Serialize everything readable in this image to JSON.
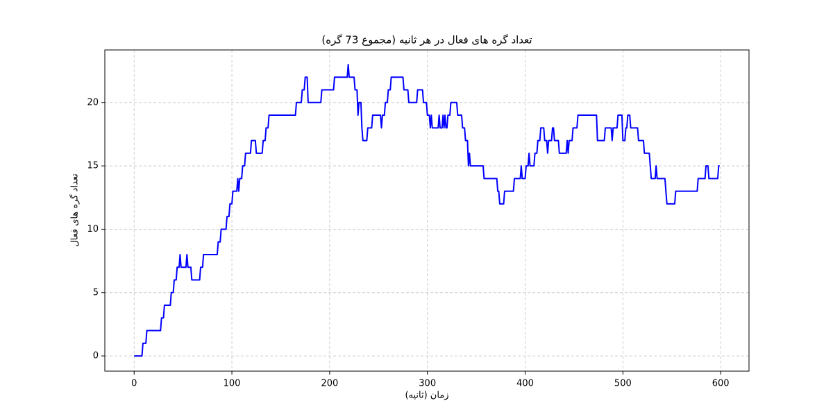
{
  "chart_data": {
    "type": "line",
    "title": "تعداد گره های فعال در هر ثانیه (مجموع 73 گره)",
    "x_label": "زمان (ثانیه)",
    "y_label": "تعداد گره های فعال",
    "x": [
      0,
      8,
      9,
      12,
      13,
      27,
      28,
      30,
      31,
      37,
      38,
      40,
      41,
      43,
      44,
      46,
      47,
      48,
      53,
      54,
      55,
      58,
      59,
      67,
      68,
      70,
      71,
      85,
      86,
      88,
      89,
      94,
      95,
      97,
      98,
      100,
      101,
      105,
      106,
      107,
      108,
      110,
      111,
      113,
      114,
      119,
      120,
      124,
      125,
      131,
      132,
      134,
      135,
      137,
      138,
      165,
      166,
      171,
      172,
      174,
      175,
      177,
      178,
      191,
      192,
      204,
      205,
      218,
      219,
      220,
      225,
      226,
      228,
      229,
      230,
      232,
      233,
      234,
      238,
      239,
      243,
      244,
      252,
      253,
      254,
      256,
      257,
      259,
      260,
      262,
      263,
      275,
      276,
      280,
      281,
      289,
      290,
      295,
      296,
      299,
      300,
      302,
      303,
      304,
      305,
      311,
      312,
      313,
      315,
      316,
      317,
      318,
      319,
      320,
      321,
      323,
      324,
      330,
      331,
      335,
      336,
      338,
      339,
      341,
      342,
      343,
      344,
      357,
      358,
      371,
      372,
      373,
      374,
      378,
      379,
      388,
      389,
      395,
      396,
      397,
      400,
      401,
      403,
      404,
      405,
      409,
      410,
      412,
      413,
      415,
      416,
      419,
      420,
      422,
      423,
      424,
      427,
      428,
      429,
      430,
      434,
      435,
      442,
      443,
      444,
      445,
      448,
      449,
      453,
      454,
      473,
      474,
      481,
      482,
      488,
      489,
      490,
      494,
      495,
      499,
      500,
      502,
      503,
      504,
      505,
      507,
      508,
      515,
      516,
      521,
      522,
      527,
      528,
      529,
      533,
      534,
      535,
      543,
      544,
      545,
      553,
      554,
      576,
      577,
      584,
      585,
      587,
      588,
      597,
      598,
      599
    ],
    "series": [
      {
        "color": "#0000ff",
        "values": [
          0,
          0,
          1,
          1,
          2,
          2,
          3,
          3,
          4,
          4,
          5,
          5,
          6,
          6,
          7,
          7,
          8,
          7,
          7,
          8,
          7,
          7,
          6,
          6,
          7,
          7,
          8,
          8,
          9,
          9,
          10,
          10,
          11,
          11,
          12,
          12,
          13,
          13,
          14,
          13,
          14,
          14,
          15,
          15,
          16,
          16,
          17,
          17,
          16,
          16,
          17,
          17,
          18,
          18,
          19,
          19,
          20,
          20,
          21,
          21,
          22,
          22,
          20,
          20,
          21,
          21,
          22,
          22,
          23,
          22,
          22,
          21,
          21,
          19,
          20,
          20,
          18,
          17,
          17,
          18,
          18,
          19,
          19,
          18,
          19,
          19,
          20,
          20,
          21,
          21,
          22,
          22,
          21,
          21,
          20,
          20,
          21,
          21,
          20,
          20,
          19,
          19,
          18,
          19,
          18,
          18,
          19,
          18,
          18,
          19,
          18,
          19,
          18,
          18,
          19,
          19,
          20,
          20,
          19,
          19,
          18,
          18,
          17,
          17,
          15,
          16,
          15,
          15,
          14,
          14,
          13,
          13,
          12,
          12,
          13,
          13,
          14,
          14,
          15,
          14,
          14,
          15,
          15,
          16,
          15,
          15,
          16,
          16,
          17,
          17,
          18,
          18,
          17,
          17,
          16,
          17,
          17,
          18,
          18,
          17,
          17,
          16,
          16,
          17,
          16,
          17,
          17,
          18,
          18,
          19,
          19,
          17,
          17,
          18,
          18,
          17,
          18,
          18,
          19,
          19,
          17,
          17,
          18,
          18,
          19,
          19,
          18,
          18,
          17,
          17,
          16,
          16,
          15,
          14,
          14,
          15,
          14,
          14,
          13,
          12,
          12,
          13,
          13,
          14,
          14,
          15,
          15,
          14,
          14,
          15,
          15
        ]
      }
    ],
    "xlim": [
      -30,
      629
    ],
    "ylim": [
      -1.2,
      24.15
    ],
    "xticks": [
      0,
      100,
      200,
      300,
      400,
      500,
      600
    ],
    "yticks": [
      0,
      5,
      10,
      15,
      20
    ],
    "grid": true
  }
}
